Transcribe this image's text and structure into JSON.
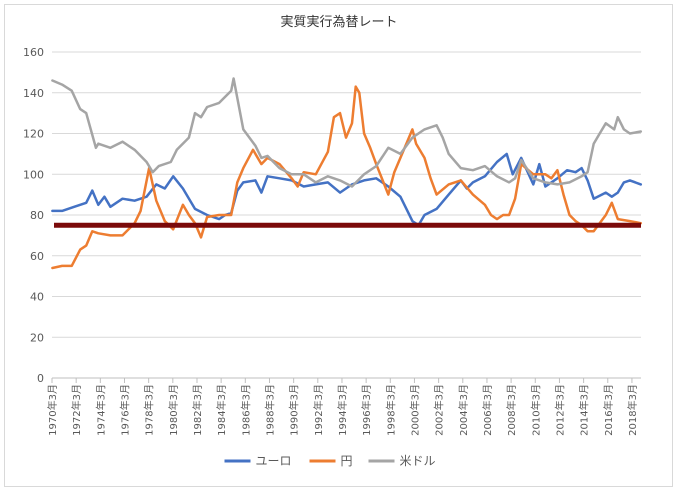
{
  "chart_data": {
    "type": "line",
    "title": "実質実行為替レート",
    "xlabel": "",
    "ylabel": "",
    "ylim": [
      0,
      160
    ],
    "yticks": [
      0,
      20,
      40,
      60,
      80,
      100,
      120,
      140,
      160
    ],
    "grid": true,
    "legend_position": "bottom",
    "x_start": "1970-03",
    "x_end": "2018-12",
    "x_tick_labels": [
      "1970年3月",
      "1972年3月",
      "1974年3月",
      "1976年3月",
      "1978年3月",
      "1980年3月",
      "1982年3月",
      "1984年3月",
      "1986年3月",
      "1988年3月",
      "1990年3月",
      "1992年3月",
      "1994年3月",
      "1996年3月",
      "1998年3月",
      "2000年3月",
      "2002年3月",
      "2004年3月",
      "2006年3月",
      "2008年3月",
      "2010年3月",
      "2012年3月",
      "2014年3月",
      "2016年3月",
      "2018年3月"
    ],
    "reference_line": {
      "y": 75,
      "color": "#7b0a0a"
    },
    "series": [
      {
        "name": "ユーロ",
        "color": "#4472c4",
        "x": [
          1970.2,
          1971,
          1972,
          1973,
          1973.5,
          1974,
          1974.5,
          1975,
          1976,
          1977,
          1978,
          1978.8,
          1979.5,
          1980.2,
          1981,
          1982,
          1983,
          1984,
          1984.5,
          1985,
          1985.5,
          1986,
          1987,
          1987.5,
          1988,
          1989,
          1990,
          1991,
          1992,
          1993,
          1994,
          1995,
          1996,
          1997,
          1998,
          1999,
          2000,
          2000.5,
          2001,
          2002,
          2003,
          2004,
          2004.5,
          2005,
          2006,
          2007,
          2007.8,
          2008.3,
          2009,
          2010,
          2010.5,
          2011,
          2012,
          2012.8,
          2013.5,
          2014,
          2014.5,
          2015,
          2016,
          2016.5,
          2017,
          2017.5,
          2018,
          2018.9
        ],
        "values": [
          82,
          82,
          84,
          86,
          92,
          85,
          89,
          84,
          88,
          87,
          89,
          95,
          93,
          99,
          93,
          83,
          80,
          78,
          80,
          81,
          92,
          96,
          97,
          91,
          99,
          98,
          97,
          94,
          95,
          96,
          91,
          95,
          97,
          98,
          94,
          89,
          77,
          75,
          80,
          83,
          90,
          97,
          93,
          96,
          99,
          106,
          110,
          100,
          108,
          95,
          105,
          94,
          98,
          102,
          101,
          103,
          97,
          88,
          91,
          89,
          91,
          96,
          97,
          95
        ]
      },
      {
        "name": "円",
        "color": "#ed7d31",
        "x": [
          1970.2,
          1971,
          1971.8,
          1972.5,
          1973,
          1973.5,
          1974,
          1975,
          1976,
          1977,
          1977.5,
          1978.2,
          1978.8,
          1979.5,
          1980.2,
          1981,
          1981.5,
          1982,
          1982.5,
          1983,
          1984,
          1985,
          1985.5,
          1986,
          1986.8,
          1987.5,
          1988,
          1989,
          1990,
          1990.5,
          1991,
          1992,
          1993,
          1993.5,
          1994,
          1994.5,
          1995,
          1995.3,
          1995.6,
          1996,
          1996.5,
          1997,
          1998,
          1998.5,
          1999,
          2000,
          2000.3,
          2001,
          2001.5,
          2002,
          2003,
          2004,
          2005,
          2006,
          2006.5,
          2007,
          2007.5,
          2008,
          2008.5,
          2009,
          2010,
          2011,
          2011.5,
          2012,
          2012.5,
          2013,
          2013.5,
          2014,
          2014.5,
          2015,
          2016,
          2016.5,
          2017,
          2018,
          2018.9
        ],
        "values": [
          54,
          55,
          55,
          63,
          65,
          72,
          71,
          70,
          70,
          76,
          82,
          103,
          87,
          77,
          73,
          85,
          80,
          76,
          69,
          79,
          80,
          80,
          96,
          103,
          112,
          105,
          108,
          105,
          98,
          94,
          101,
          100,
          111,
          128,
          130,
          118,
          125,
          143,
          140,
          120,
          113,
          105,
          90,
          101,
          108,
          122,
          115,
          108,
          98,
          90,
          95,
          97,
          90,
          85,
          80,
          78,
          80,
          80,
          88,
          105,
          100,
          100,
          98,
          102,
          90,
          80,
          77,
          75,
          72,
          72,
          80,
          86,
          78,
          77,
          76
        ]
      },
      {
        "name": "米ドル",
        "color": "#a5a5a5",
        "x": [
          1970.2,
          1971,
          1971.8,
          1972.5,
          1973,
          1973.8,
          1974,
          1975,
          1976,
          1977,
          1978,
          1978.5,
          1979,
          1980,
          1980.5,
          1981.5,
          1982,
          1982.5,
          1983,
          1984,
          1985,
          1985.2,
          1986,
          1987,
          1987.5,
          1988,
          1989,
          1990,
          1991,
          1992,
          1993,
          1994,
          1995,
          1996,
          1997,
          1998,
          1999,
          2000,
          2001,
          2002,
          2002.5,
          2003,
          2004,
          2005,
          2006,
          2007,
          2008,
          2008.5,
          2009,
          2010,
          2011,
          2012,
          2013,
          2014,
          2014.5,
          2015,
          2015.5,
          2016,
          2016.7,
          2017,
          2017.5,
          2018,
          2018.9
        ],
        "values": [
          146,
          144,
          141,
          132,
          130,
          113,
          115,
          113,
          116,
          112,
          106,
          101,
          104,
          106,
          112,
          118,
          130,
          128,
          133,
          135,
          141,
          147,
          122,
          114,
          108,
          109,
          103,
          100,
          100,
          96,
          99,
          97,
          94,
          100,
          104,
          113,
          110,
          118,
          122,
          124,
          118,
          110,
          103,
          102,
          104,
          99,
          96,
          98,
          107,
          98,
          96,
          95,
          96,
          99,
          101,
          115,
          120,
          125,
          122,
          128,
          122,
          120,
          121
        ]
      }
    ]
  }
}
